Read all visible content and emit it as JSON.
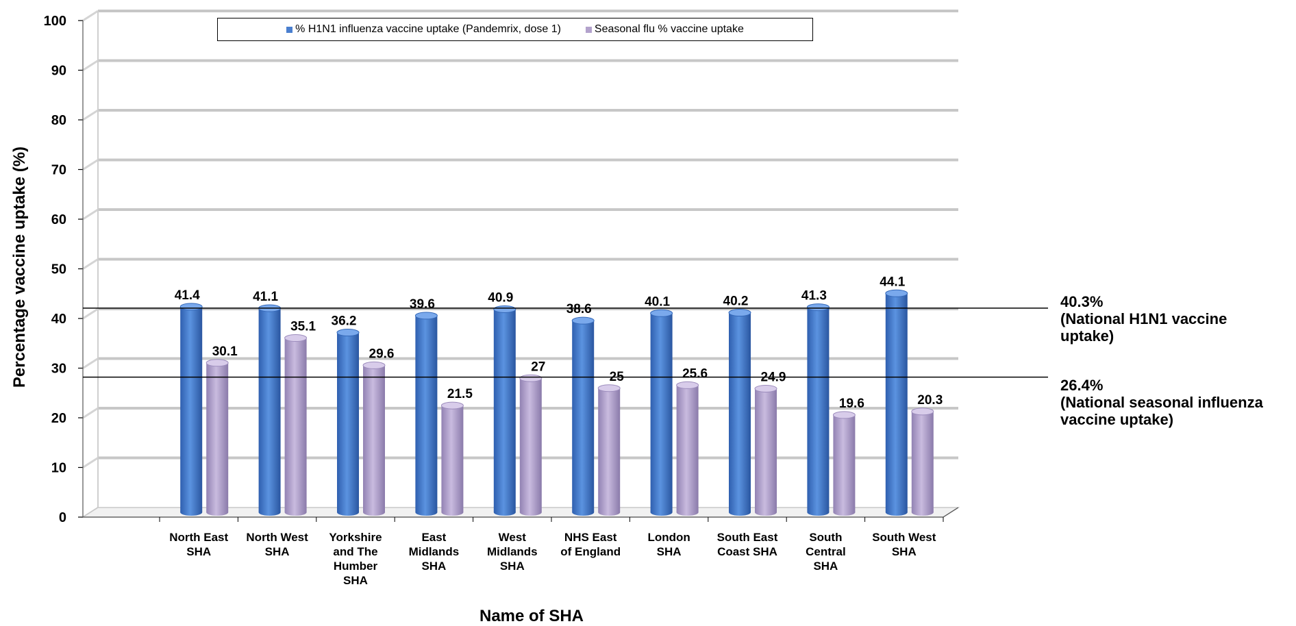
{
  "chart_data": {
    "type": "bar",
    "categories": [
      [
        "North East",
        "SHA"
      ],
      [
        "North West",
        "SHA"
      ],
      [
        "Yorkshire",
        "and The",
        "Humber",
        "SHA"
      ],
      [
        "East",
        "Midlands",
        "SHA"
      ],
      [
        "West",
        "Midlands",
        "SHA"
      ],
      [
        "NHS East",
        "of England"
      ],
      [
        "London",
        "SHA"
      ],
      [
        "South East",
        "Coast SHA"
      ],
      [
        "South",
        "Central",
        "SHA"
      ],
      [
        "South West",
        "SHA"
      ]
    ],
    "series": [
      {
        "name": "% H1N1 influenza vaccine uptake (Pandemrix, dose 1)",
        "color": "#4A7FCF",
        "values": [
          41.4,
          41.1,
          36.2,
          39.6,
          40.9,
          38.6,
          40.1,
          40.2,
          41.3,
          44.1
        ],
        "labels": [
          "41.4",
          "41.1",
          "36.2",
          "39.6",
          "40.9",
          "38.6",
          "40.1",
          "40.2",
          "41.3",
          "44.1"
        ]
      },
      {
        "name": "Seasonal flu % vaccine uptake",
        "color": "#B3A2CC",
        "values": [
          30.1,
          35.1,
          29.6,
          21.5,
          27,
          25,
          25.6,
          24.9,
          19.6,
          20.3
        ],
        "labels": [
          "30.1",
          "35.1",
          "29.6",
          "21.5",
          "27",
          "25",
          "25.6",
          "24.9",
          "19.6",
          "20.3"
        ]
      }
    ],
    "title": "",
    "xlabel": "Name of SHA",
    "ylabel": "Percentage vaccine uptake (%)",
    "ylim": [
      0,
      100
    ],
    "yticks": [
      0,
      10,
      20,
      30,
      40,
      50,
      60,
      70,
      80,
      90,
      100
    ],
    "grid": true,
    "legend_position": "top",
    "reference_lines": [
      {
        "value": 40.3,
        "label": [
          "40.3%",
          "(National H1N1 vaccine",
          "uptake)"
        ]
      },
      {
        "value": 26.4,
        "label": [
          "26.4%",
          "(National seasonal influenza",
          "vaccine uptake)"
        ]
      }
    ]
  }
}
